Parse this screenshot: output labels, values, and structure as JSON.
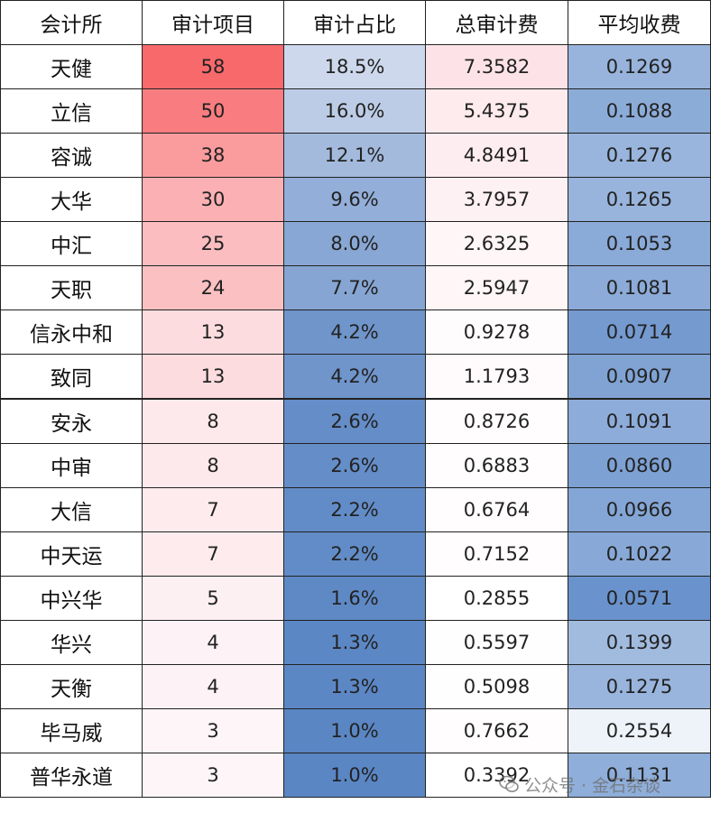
{
  "headers": [
    "会计所",
    "审计项目",
    "审计占比",
    "总审计费",
    "平均收费"
  ],
  "rows": [
    [
      "天健",
      "58",
      "18.5%",
      "7.3582",
      "0.1269"
    ],
    [
      "立信",
      "50",
      "16.0%",
      "5.4375",
      "0.1088"
    ],
    [
      "容诚",
      "38",
      "12.1%",
      "4.8491",
      "0.1276"
    ],
    [
      "大华",
      "30",
      "9.6%",
      "3.7957",
      "0.1265"
    ],
    [
      "中汇",
      "25",
      "8.0%",
      "2.6325",
      "0.1053"
    ],
    [
      "天职",
      "24",
      "7.7%",
      "2.5947",
      "0.1081"
    ],
    [
      "信永中和",
      "13",
      "4.2%",
      "0.9278",
      "0.0714"
    ],
    [
      "致同",
      "13",
      "4.2%",
      "1.1793",
      "0.0907"
    ],
    [
      "安永",
      "8",
      "2.6%",
      "0.8726",
      "0.1091"
    ],
    [
      "中审",
      "8",
      "2.6%",
      "0.6883",
      "0.0860"
    ],
    [
      "大信",
      "7",
      "2.2%",
      "0.6764",
      "0.0966"
    ],
    [
      "中天运",
      "7",
      "2.2%",
      "0.7152",
      "0.1022"
    ],
    [
      "中兴华",
      "5",
      "1.6%",
      "0.2855",
      "0.0571"
    ],
    [
      "华兴",
      "4",
      "1.3%",
      "0.5597",
      "0.1399"
    ],
    [
      "天衡",
      "4",
      "1.3%",
      "0.5098",
      "0.1275"
    ],
    [
      "毕马威",
      "3",
      "1.0%",
      "0.7662",
      "0.2554"
    ],
    [
      "普华永道",
      "3",
      "1.0%",
      "0.3392",
      "0.1131"
    ]
  ],
  "watermark": {
    "text": "公众号 · 金石杂谈",
    "icon": "wechat-icon"
  },
  "colors": {
    "col2_high": "#f8696b",
    "col2_low": "#fdf5f8",
    "col3_high": "#cdd8ec",
    "col3_low": "#5a86c4",
    "col4_high": "#fde3e8",
    "col4_low": "#ffffff",
    "col5_high": "#eef2f9",
    "col5_low": "#6a93cd"
  }
}
